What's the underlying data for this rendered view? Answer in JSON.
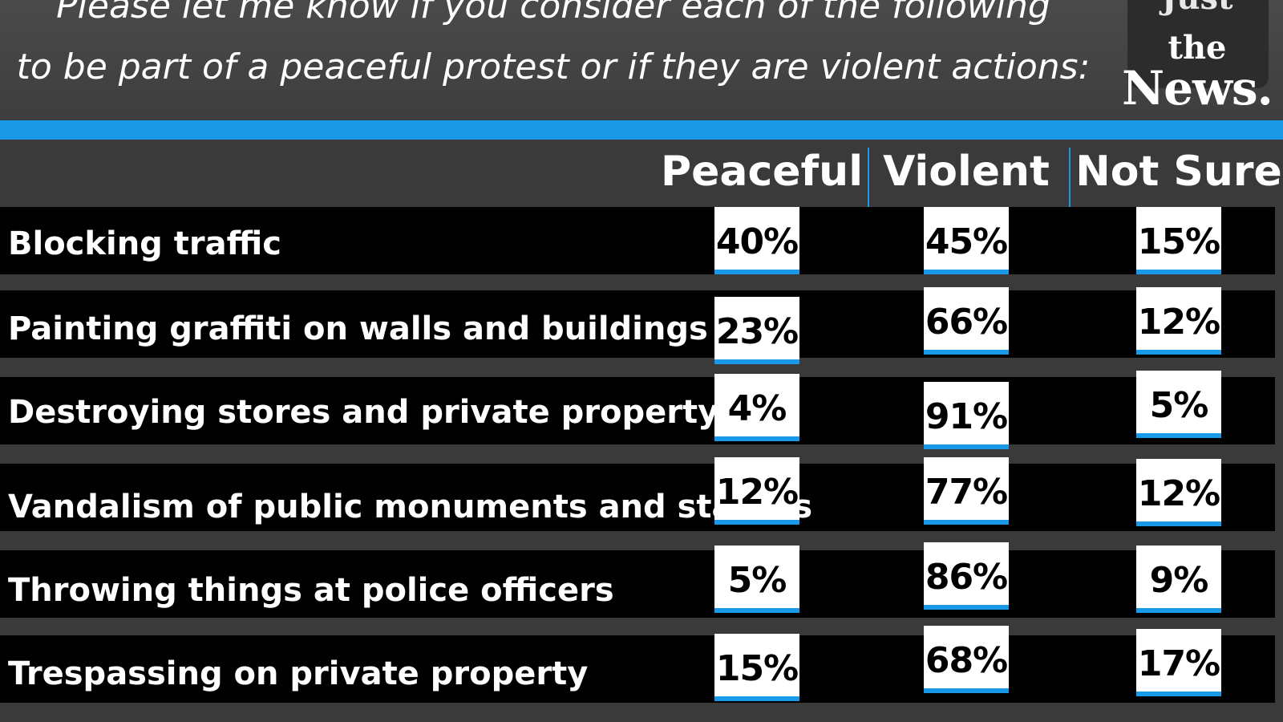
{
  "header": {
    "question_line1": "Please let me know if you consider each of the following",
    "question_line2": "to be part of a peaceful protest or if they are violent actions:"
  },
  "logo": {
    "line1": "Just",
    "line2": "the",
    "line3": "News."
  },
  "colors": {
    "accent": "#1a9ae6",
    "background": "#3a3a3a",
    "row": "#000000",
    "cell": "#ffffff"
  },
  "chart_data": {
    "type": "table",
    "title": "Please let me know if you consider each of the following to be part of a peaceful protest or if they are violent actions:",
    "columns": [
      "Peaceful",
      "Violent",
      "Not Sure"
    ],
    "categories": [
      "Blocking traffic",
      "Painting graffiti on walls and buildings",
      "Destroying stores and private property",
      "Vandalism of public monuments and statues",
      "Throwing things at police officers",
      "Trespassing on private property"
    ],
    "series": [
      {
        "name": "Peaceful",
        "values": [
          40,
          23,
          4,
          12,
          5,
          15
        ]
      },
      {
        "name": "Violent",
        "values": [
          45,
          66,
          91,
          77,
          86,
          68
        ]
      },
      {
        "name": "Not Sure",
        "values": [
          15,
          12,
          5,
          12,
          9,
          17
        ]
      }
    ],
    "unit": "%"
  }
}
